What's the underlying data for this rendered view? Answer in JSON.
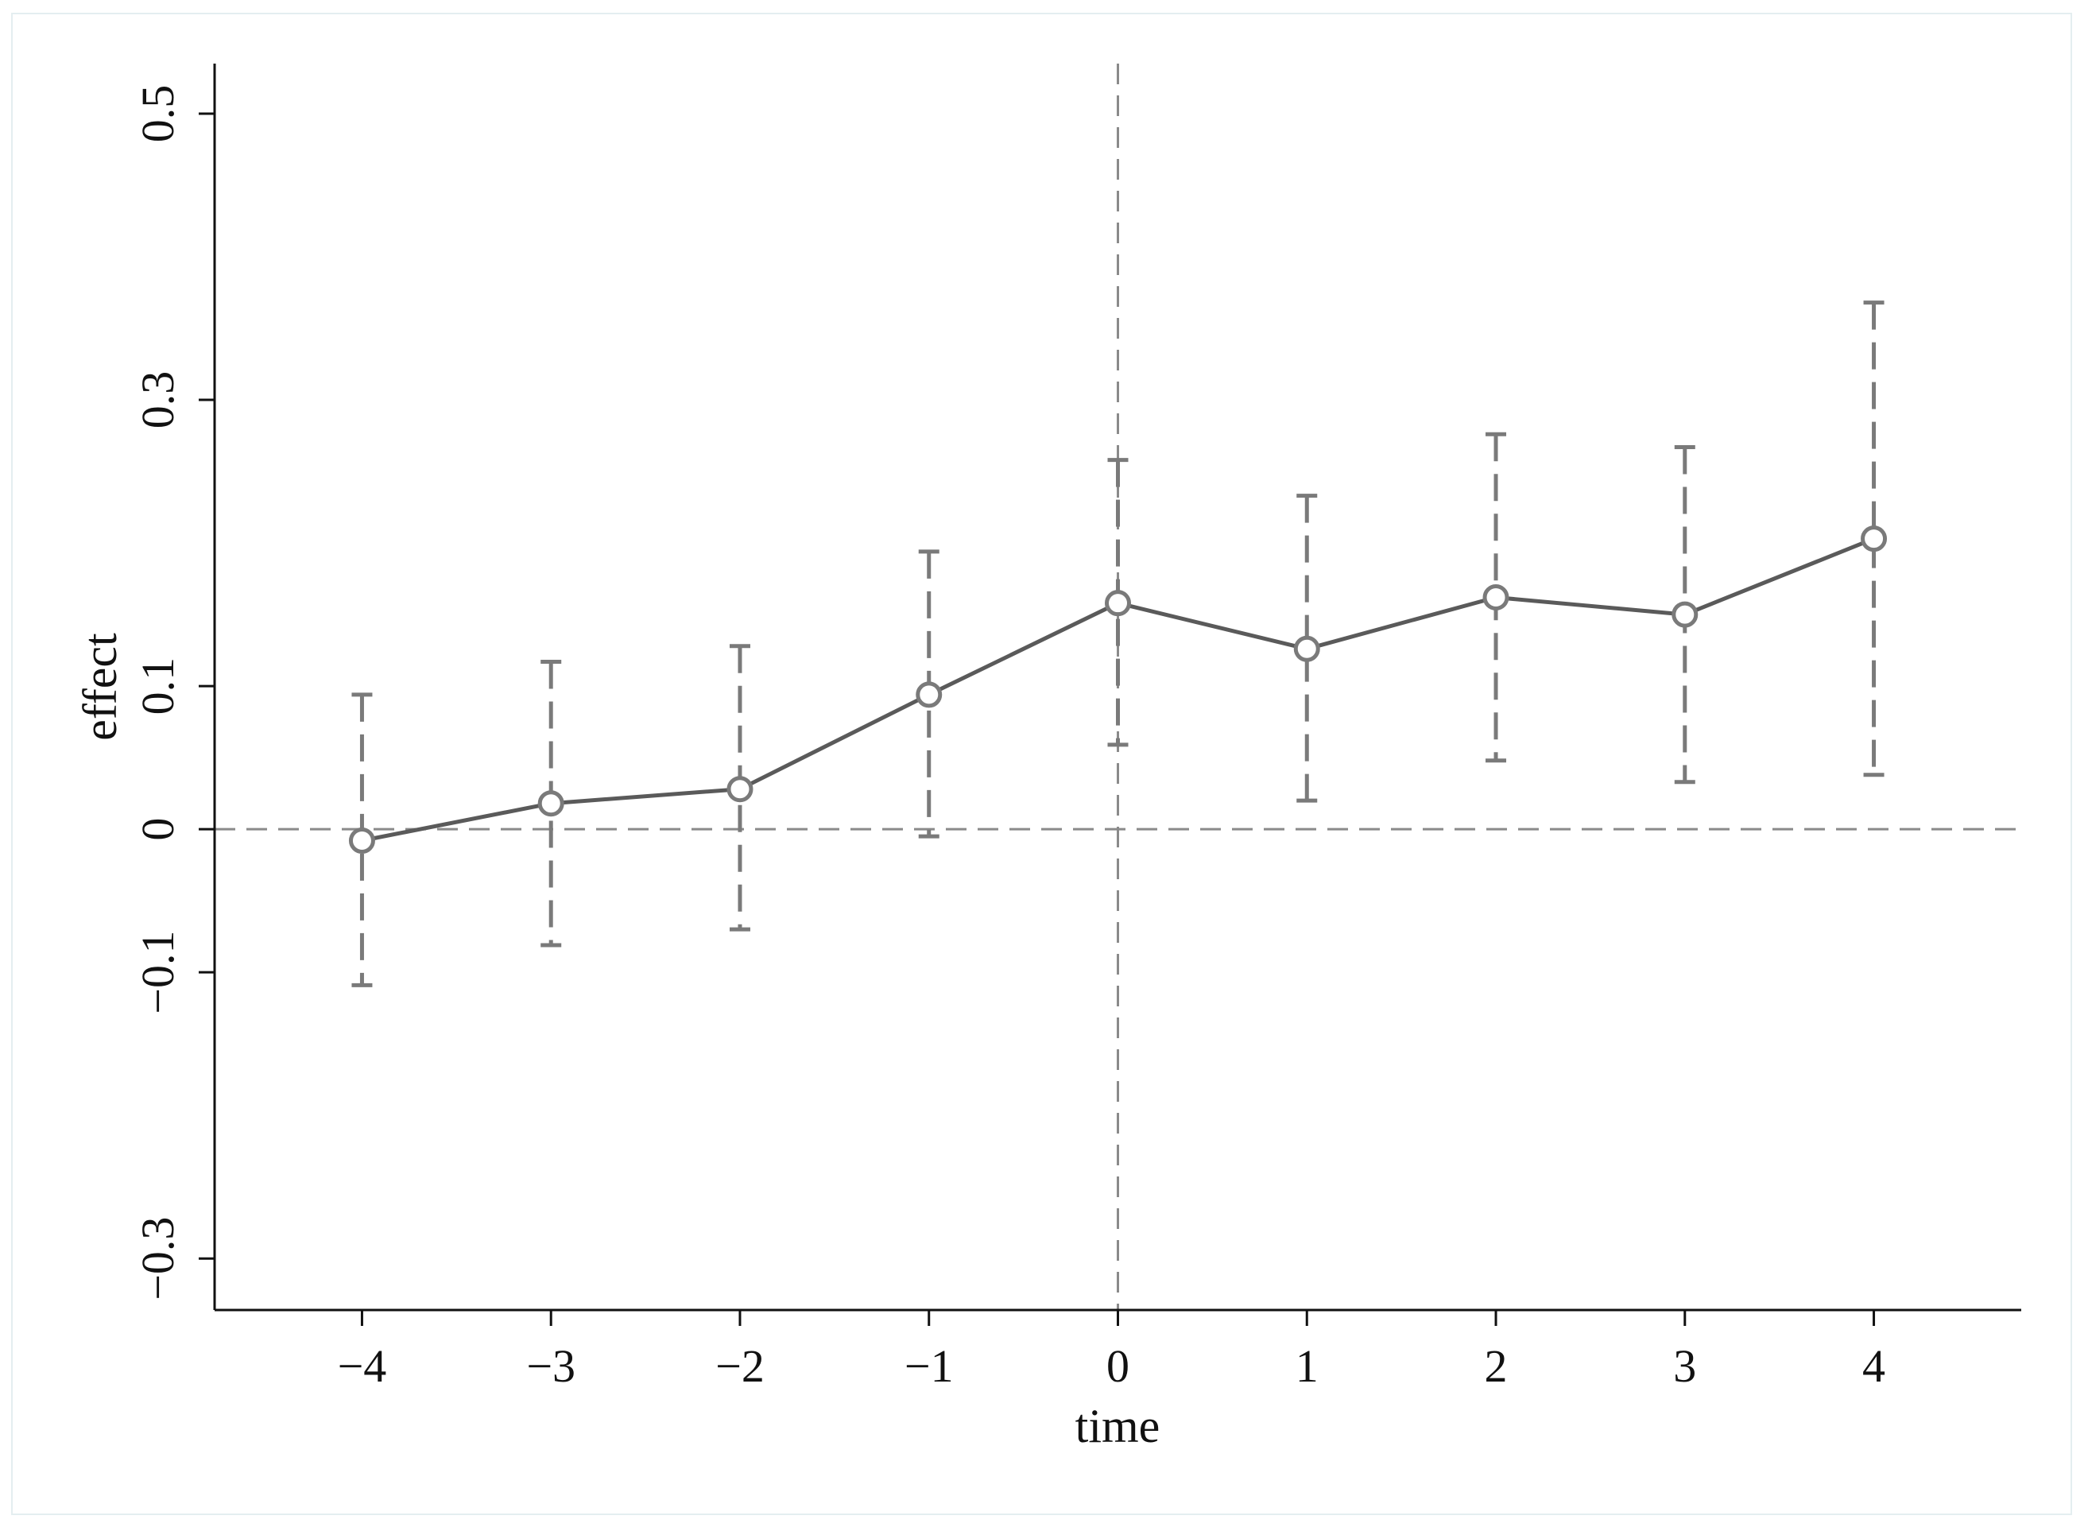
{
  "chart_data": {
    "type": "line",
    "xlabel": "time",
    "ylabel": "effect",
    "x": [
      -4,
      -3,
      -2,
      -1,
      0,
      1,
      2,
      3,
      4
    ],
    "x_tick_labels": [
      "−4",
      "−3",
      "−2",
      "−1",
      "0",
      "1",
      "2",
      "3",
      "4"
    ],
    "y_ticks": [
      -0.3,
      -0.1,
      0,
      0.1,
      0.3,
      0.5
    ],
    "y_tick_labels": [
      "−0.3",
      "−0.1",
      "0",
      "0.1",
      "0.3",
      "0.5"
    ],
    "xlim": [
      -4.78,
      4.78
    ],
    "ylim": [
      -0.336,
      0.535
    ],
    "series": [
      {
        "values": [
          -0.008,
          0.018,
          0.028,
          0.094,
          0.158,
          0.126,
          0.162,
          0.15,
          0.203
        ],
        "ci_lower": [
          -0.109,
          -0.081,
          -0.07,
          -0.005,
          0.059,
          0.02,
          0.048,
          0.033,
          0.038
        ],
        "ci_upper": [
          0.094,
          0.117,
          0.128,
          0.194,
          0.258,
          0.233,
          0.276,
          0.267,
          0.368
        ]
      }
    ],
    "reference_lines": [
      {
        "axis": "x",
        "value": 0,
        "style": "dashed"
      },
      {
        "axis": "y",
        "value": 0,
        "style": "dashed"
      }
    ],
    "grid": false,
    "legend": "none",
    "colors": {
      "line": "#5a5a5a",
      "marker": "#7a7a7a",
      "ci": "#7a7a7a",
      "reference": "#8a8a8a",
      "axis": "#111111"
    }
  }
}
